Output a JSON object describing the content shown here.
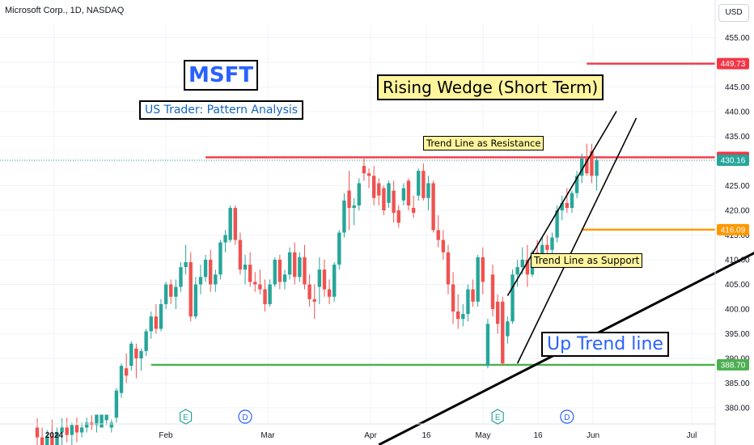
{
  "header": {
    "title": "Microsoft Corp., 1D, NASDAQ",
    "currency": "USD"
  },
  "annotations": {
    "ticker": "MSFT",
    "subtitle": "US Trader: Pattern Analysis",
    "pattern": "Rising Wedge (Short Term)",
    "resistance_note": "Trend Line as Resistance",
    "support_note": "Trend Line as Support",
    "uptrend_note": "Up Trend line"
  },
  "colors": {
    "up": "#26a69a",
    "down": "#ef5350",
    "resistance_line": "#f23645",
    "support_line": "#4caf50",
    "level_line": "#ff9800",
    "grid": "#f0f3fa",
    "axis_text": "#131722",
    "highlight_text": "#2962ff"
  },
  "chart_data": {
    "type": "candlestick",
    "x_labels": [
      "2024",
      "Feb",
      "Mar",
      "Apr",
      "16",
      "May",
      "16",
      "Jun",
      "Jul"
    ],
    "y_ticks": [
      380,
      385,
      390,
      395,
      400,
      405,
      410,
      415,
      420,
      425,
      430,
      435,
      440,
      445,
      450,
      455
    ],
    "ylim": [
      377,
      459
    ],
    "grid": true,
    "price_labels": [
      {
        "value": 449.73,
        "label": "449.73",
        "color": "#f23645"
      },
      {
        "value": 430.74,
        "label": "430.74",
        "color": "#f23645"
      },
      {
        "value": 430.16,
        "label": "430.16",
        "color": "#26a69a"
      },
      {
        "value": 416.09,
        "label": "416.09",
        "color": "#ff9800"
      },
      {
        "value": 388.7,
        "label": "388.70",
        "color": "#4caf50"
      }
    ],
    "horizontal_levels": [
      {
        "value": 449.73,
        "from_bar": 111,
        "color": "#f23645"
      },
      {
        "value": 430.74,
        "from_bar": 34,
        "color": "#f23645"
      },
      {
        "value": 416.09,
        "from_bar": 110,
        "color": "#ff9800"
      },
      {
        "value": 388.7,
        "from_bar": 23,
        "color": "#4caf50"
      }
    ],
    "trend_lines": [
      {
        "name": "up-trend-line",
        "from": [
          69,
          372.5
        ],
        "to": [
          149,
          413.5
        ]
      },
      {
        "name": "wedge-upper-line",
        "from": [
          95,
          402.7
        ],
        "to": [
          117,
          440.1
        ]
      },
      {
        "name": "wedge-lower-line",
        "from": [
          97,
          389.0
        ],
        "to": [
          121,
          438.7
        ]
      }
    ],
    "event_markers": [
      {
        "bar": 30,
        "label": "E"
      },
      {
        "bar": 42,
        "label": "D"
      },
      {
        "bar": 93,
        "label": "E"
      },
      {
        "bar": 107,
        "label": "D"
      }
    ],
    "candles": [
      {
        "o": 376.0,
        "h": 377.9,
        "l": 370.0,
        "c": 374.0
      },
      {
        "o": 374.0,
        "h": 376.0,
        "l": 368.0,
        "c": 370.0
      },
      {
        "o": 370.0,
        "h": 375.5,
        "l": 368.0,
        "c": 374.2
      },
      {
        "o": 374.2,
        "h": 377.6,
        "l": 371.0,
        "c": 372.0
      },
      {
        "o": 372.0,
        "h": 376.0,
        "l": 370.0,
        "c": 375.0
      },
      {
        "o": 375.0,
        "h": 377.9,
        "l": 372.0,
        "c": 376.0
      },
      {
        "o": 376.0,
        "h": 378.0,
        "l": 373.0,
        "c": 374.5
      },
      {
        "o": 374.5,
        "h": 377.0,
        "l": 372.0,
        "c": 376.5
      },
      {
        "o": 376.5,
        "h": 378.0,
        "l": 373.0,
        "c": 375.0
      },
      {
        "o": 375.0,
        "h": 377.0,
        "l": 374.0,
        "c": 376.0
      },
      {
        "o": 376.0,
        "h": 378.0,
        "l": 375.0,
        "c": 377.0
      },
      {
        "o": 377.0,
        "h": 378.5,
        "l": 375.5,
        "c": 376.5
      },
      {
        "o": 376.5,
        "h": 378.6,
        "l": 375.0,
        "c": 378.6
      },
      {
        "o": 376.0,
        "h": 378.6,
        "l": 376.0,
        "c": 378.6
      },
      {
        "o": 377.5,
        "h": 378.6,
        "l": 376.5,
        "c": 378.6
      },
      {
        "o": 376.0,
        "h": 377.6,
        "l": 375.0,
        "c": 377.0
      },
      {
        "o": 378.0,
        "h": 384.0,
        "l": 377.0,
        "c": 383.5
      },
      {
        "o": 383.0,
        "h": 389.0,
        "l": 382.0,
        "c": 388.5
      },
      {
        "o": 388.0,
        "h": 391.0,
        "l": 385.0,
        "c": 386.5
      },
      {
        "o": 388.5,
        "h": 393.5,
        "l": 387.5,
        "c": 393.0
      },
      {
        "o": 392.0,
        "h": 393.0,
        "l": 386.0,
        "c": 390.0
      },
      {
        "o": 390.0,
        "h": 392.0,
        "l": 387.5,
        "c": 391.5
      },
      {
        "o": 391.5,
        "h": 396.0,
        "l": 390.5,
        "c": 395.5
      },
      {
        "o": 395.5,
        "h": 399.5,
        "l": 394.0,
        "c": 398.5
      },
      {
        "o": 398.5,
        "h": 401.0,
        "l": 395.0,
        "c": 396.0
      },
      {
        "o": 396.0,
        "h": 402.0,
        "l": 395.5,
        "c": 401.0
      },
      {
        "o": 401.0,
        "h": 405.5,
        "l": 400.0,
        "c": 405.0
      },
      {
        "o": 405.0,
        "h": 406.0,
        "l": 401.0,
        "c": 402.5
      },
      {
        "o": 402.5,
        "h": 406.0,
        "l": 400.0,
        "c": 404.5
      },
      {
        "o": 404.5,
        "h": 409.5,
        "l": 403.5,
        "c": 408.5
      },
      {
        "o": 408.5,
        "h": 413.0,
        "l": 407.0,
        "c": 409.5
      },
      {
        "o": 409.5,
        "h": 411.5,
        "l": 397.5,
        "c": 398.5
      },
      {
        "o": 398.5,
        "h": 406.5,
        "l": 398.0,
        "c": 405.0
      },
      {
        "o": 405.0,
        "h": 409.0,
        "l": 403.0,
        "c": 406.5
      },
      {
        "o": 406.5,
        "h": 411.0,
        "l": 405.5,
        "c": 410.0
      },
      {
        "o": 410.0,
        "h": 412.0,
        "l": 403.5,
        "c": 405.0
      },
      {
        "o": 405.0,
        "h": 408.0,
        "l": 403.5,
        "c": 407.0
      },
      {
        "o": 407.0,
        "h": 414.0,
        "l": 406.0,
        "c": 413.5
      },
      {
        "o": 413.5,
        "h": 416.0,
        "l": 411.5,
        "c": 415.0
      },
      {
        "o": 414.0,
        "h": 421.0,
        "l": 413.5,
        "c": 420.5
      },
      {
        "o": 420.5,
        "h": 421.0,
        "l": 413.0,
        "c": 414.0
      },
      {
        "o": 414.0,
        "h": 415.5,
        "l": 407.0,
        "c": 408.0
      },
      {
        "o": 408.0,
        "h": 411.0,
        "l": 405.0,
        "c": 409.0
      },
      {
        "o": 409.0,
        "h": 411.5,
        "l": 404.5,
        "c": 405.5
      },
      {
        "o": 405.5,
        "h": 407.5,
        "l": 403.5,
        "c": 405.0
      },
      {
        "o": 405.0,
        "h": 408.0,
        "l": 403.0,
        "c": 404.0
      },
      {
        "o": 404.0,
        "h": 406.0,
        "l": 399.5,
        "c": 401.0
      },
      {
        "o": 401.0,
        "h": 406.0,
        "l": 400.5,
        "c": 405.0
      },
      {
        "o": 405.0,
        "h": 410.5,
        "l": 404.5,
        "c": 410.0
      },
      {
        "o": 410.0,
        "h": 411.0,
        "l": 404.0,
        "c": 405.5
      },
      {
        "o": 405.5,
        "h": 408.0,
        "l": 404.0,
        "c": 407.0
      },
      {
        "o": 407.0,
        "h": 412.5,
        "l": 406.0,
        "c": 411.5
      },
      {
        "o": 411.5,
        "h": 413.5,
        "l": 405.0,
        "c": 406.5
      },
      {
        "o": 406.5,
        "h": 411.5,
        "l": 405.5,
        "c": 410.5
      },
      {
        "o": 410.5,
        "h": 413.0,
        "l": 404.0,
        "c": 405.0
      },
      {
        "o": 405.0,
        "h": 407.0,
        "l": 400.5,
        "c": 402.0
      },
      {
        "o": 402.0,
        "h": 405.0,
        "l": 398.0,
        "c": 401.5
      },
      {
        "o": 404.5,
        "h": 410.5,
        "l": 401.0,
        "c": 408.0
      },
      {
        "o": 408.0,
        "h": 410.0,
        "l": 402.5,
        "c": 404.0
      },
      {
        "o": 404.0,
        "h": 406.0,
        "l": 401.0,
        "c": 402.5
      },
      {
        "o": 402.5,
        "h": 409.5,
        "l": 401.5,
        "c": 409.0
      },
      {
        "o": 409.0,
        "h": 416.0,
        "l": 408.0,
        "c": 415.5
      },
      {
        "o": 415.5,
        "h": 423.5,
        "l": 414.5,
        "c": 422.0
      },
      {
        "o": 424.0,
        "h": 428.0,
        "l": 416.0,
        "c": 420.5
      },
      {
        "o": 420.5,
        "h": 422.5,
        "l": 417.0,
        "c": 421.0
      },
      {
        "o": 421.0,
        "h": 426.5,
        "l": 420.0,
        "c": 425.5
      },
      {
        "o": 429.0,
        "h": 430.5,
        "l": 426.0,
        "c": 427.5
      },
      {
        "o": 427.5,
        "h": 428.5,
        "l": 424.5,
        "c": 427.0
      },
      {
        "o": 427.0,
        "h": 429.0,
        "l": 421.0,
        "c": 422.5
      },
      {
        "o": 425.5,
        "h": 426.5,
        "l": 421.0,
        "c": 423.0
      },
      {
        "o": 424.5,
        "h": 425.0,
        "l": 419.0,
        "c": 420.0
      },
      {
        "o": 421.5,
        "h": 426.0,
        "l": 420.5,
        "c": 425.5
      },
      {
        "o": 424.0,
        "h": 426.0,
        "l": 417.5,
        "c": 419.5
      },
      {
        "o": 420.0,
        "h": 421.0,
        "l": 416.5,
        "c": 417.5
      },
      {
        "o": 422.0,
        "h": 425.5,
        "l": 421.0,
        "c": 424.5
      },
      {
        "o": 426.0,
        "h": 426.5,
        "l": 420.0,
        "c": 421.0
      },
      {
        "o": 420.5,
        "h": 423.0,
        "l": 418.5,
        "c": 419.5
      },
      {
        "o": 423.0,
        "h": 428.5,
        "l": 422.0,
        "c": 428.0
      },
      {
        "o": 428.0,
        "h": 429.5,
        "l": 422.0,
        "c": 422.5
      },
      {
        "o": 422.5,
        "h": 427.0,
        "l": 420.0,
        "c": 425.5
      },
      {
        "o": 425.5,
        "h": 426.0,
        "l": 415.5,
        "c": 416.0
      },
      {
        "o": 416.0,
        "h": 419.0,
        "l": 412.5,
        "c": 414.0
      },
      {
        "o": 414.0,
        "h": 416.0,
        "l": 410.0,
        "c": 411.5
      },
      {
        "o": 411.5,
        "h": 413.0,
        "l": 403.0,
        "c": 405.0
      },
      {
        "o": 405.0,
        "h": 407.5,
        "l": 397.0,
        "c": 399.5
      },
      {
        "o": 399.5,
        "h": 403.0,
        "l": 396.0,
        "c": 398.0
      },
      {
        "o": 398.0,
        "h": 401.0,
        "l": 396.5,
        "c": 399.0
      },
      {
        "o": 399.0,
        "h": 405.0,
        "l": 397.5,
        "c": 404.0
      },
      {
        "o": 404.0,
        "h": 406.0,
        "l": 400.5,
        "c": 401.5
      },
      {
        "o": 401.5,
        "h": 411.0,
        "l": 400.5,
        "c": 410.5
      },
      {
        "o": 410.5,
        "h": 412.5,
        "l": 403.0,
        "c": 405.5
      },
      {
        "o": 388.5,
        "h": 398.0,
        "l": 388.0,
        "c": 397.0
      },
      {
        "o": 407.0,
        "h": 409.0,
        "l": 398.5,
        "c": 400.0
      },
      {
        "o": 401.5,
        "h": 403.0,
        "l": 395.0,
        "c": 397.0
      },
      {
        "o": 401.5,
        "h": 402.5,
        "l": 388.5,
        "c": 389.0
      },
      {
        "o": 394.5,
        "h": 398.5,
        "l": 393.0,
        "c": 397.5
      },
      {
        "o": 397.5,
        "h": 408.0,
        "l": 397.0,
        "c": 407.0
      },
      {
        "o": 407.0,
        "h": 410.0,
        "l": 404.5,
        "c": 408.5
      },
      {
        "o": 408.5,
        "h": 412.5,
        "l": 407.0,
        "c": 410.0
      },
      {
        "o": 410.0,
        "h": 413.0,
        "l": 404.5,
        "c": 407.0
      },
      {
        "o": 407.0,
        "h": 412.0,
        "l": 406.5,
        "c": 411.5
      },
      {
        "o": 411.5,
        "h": 414.0,
        "l": 408.5,
        "c": 409.5
      },
      {
        "o": 409.5,
        "h": 414.5,
        "l": 408.5,
        "c": 413.0
      },
      {
        "o": 413.0,
        "h": 415.0,
        "l": 410.5,
        "c": 412.0
      },
      {
        "o": 412.0,
        "h": 415.5,
        "l": 409.5,
        "c": 414.5
      },
      {
        "o": 414.5,
        "h": 421.0,
        "l": 413.5,
        "c": 420.0
      },
      {
        "o": 420.0,
        "h": 423.0,
        "l": 418.0,
        "c": 421.5
      },
      {
        "o": 421.5,
        "h": 424.5,
        "l": 419.5,
        "c": 420.5
      },
      {
        "o": 420.5,
        "h": 424.0,
        "l": 419.5,
        "c": 423.5
      },
      {
        "o": 423.5,
        "h": 428.0,
        "l": 422.5,
        "c": 427.0
      },
      {
        "o": 427.0,
        "h": 431.5,
        "l": 425.5,
        "c": 430.5
      },
      {
        "o": 430.5,
        "h": 433.5,
        "l": 427.0,
        "c": 427.5
      },
      {
        "o": 432.0,
        "h": 433.5,
        "l": 425.5,
        "c": 427.0
      },
      {
        "o": 427.0,
        "h": 431.0,
        "l": 424.0,
        "c": 430.16
      }
    ]
  }
}
